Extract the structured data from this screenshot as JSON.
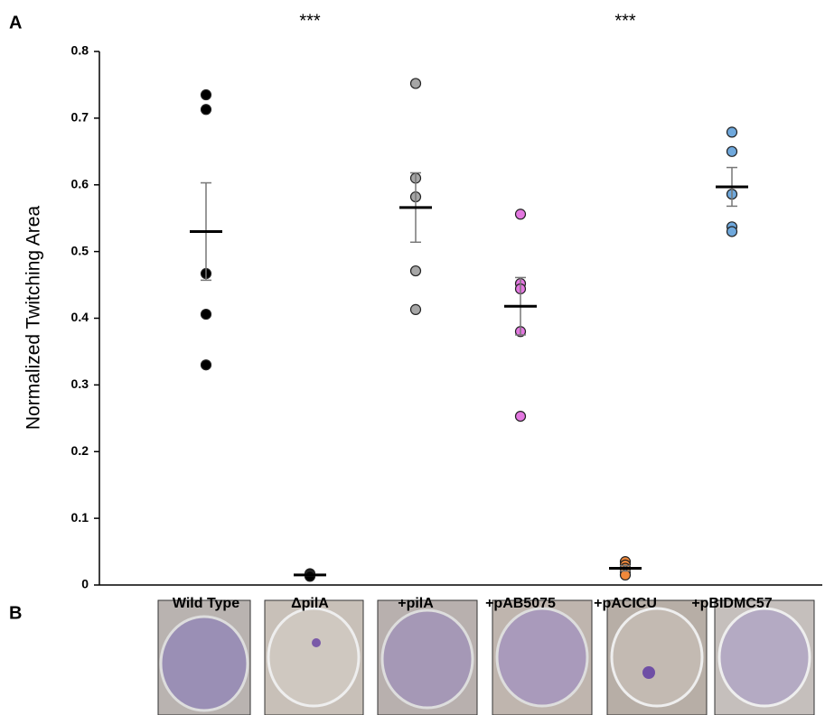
{
  "figure": {
    "panels": [
      "A",
      "B"
    ]
  },
  "chart_data": {
    "type": "dot",
    "y_label": "Normalized Twitching Area",
    "categories": [
      "Wild Type",
      "ΔpilA",
      "+pilA",
      "+pAB5075",
      "+pACICU",
      "+pBIDMC57"
    ],
    "values": [
      [
        0.735,
        0.713,
        0.467,
        0.406,
        0.33
      ],
      [
        0.017,
        0.015,
        0.014,
        0.013
      ],
      [
        0.752,
        0.61,
        0.582,
        0.471,
        0.413
      ],
      [
        0.556,
        0.452,
        0.444,
        0.38,
        0.253
      ],
      [
        0.035,
        0.03,
        0.025,
        0.02,
        0.015
      ],
      [
        0.679,
        0.65,
        0.586,
        0.537,
        0.53
      ]
    ],
    "means": [
      0.53,
      0.015,
      0.566,
      0.418,
      0.025,
      0.597
    ],
    "errors": [
      0.073,
      0.001,
      0.052,
      0.043,
      0.004,
      0.029
    ],
    "colors": [
      "#000000",
      "#000000",
      "#a6a6a6",
      "#e377e0",
      "#f0883a",
      "#6fa8dc"
    ],
    "significance": [
      null,
      "***",
      null,
      null,
      "***",
      null
    ],
    "ylim": [
      0,
      0.8
    ],
    "yticks": [
      0,
      0.1,
      0.2,
      0.3,
      0.4,
      0.5,
      0.6,
      0.7,
      0.8
    ]
  }
}
